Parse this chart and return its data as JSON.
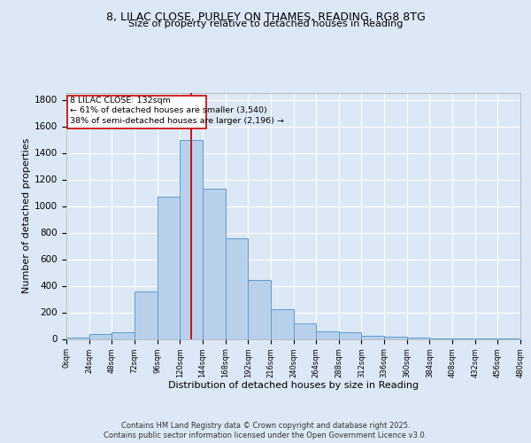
{
  "title_line1": "8, LILAC CLOSE, PURLEY ON THAMES, READING, RG8 8TG",
  "title_line2": "Size of property relative to detached houses in Reading",
  "xlabel": "Distribution of detached houses by size in Reading",
  "ylabel": "Number of detached properties",
  "annotation_title": "8 LILAC CLOSE: 132sqm",
  "annotation_line2": "← 61% of detached houses are smaller (3,540)",
  "annotation_line3": "38% of semi-detached houses are larger (2,196) →",
  "property_size": 132,
  "bar_edges": [
    0,
    24,
    48,
    72,
    96,
    120,
    144,
    168,
    192,
    216,
    240,
    264,
    288,
    312,
    336,
    360,
    384,
    408,
    432,
    456,
    480
  ],
  "bar_heights": [
    10,
    35,
    50,
    355,
    1070,
    1500,
    1130,
    760,
    445,
    225,
    115,
    55,
    50,
    25,
    15,
    10,
    5,
    3,
    2,
    1
  ],
  "bar_color": "#b8d0ea",
  "bar_edge_color": "#5a9fd4",
  "vline_color": "#cc0000",
  "vline_x": 132,
  "annotation_box_color": "#cc0000",
  "background_color": "#dce8f5",
  "plot_bg": "#dce8f5",
  "grid_color": "#ffffff",
  "ytick_labels": [
    "0",
    "200",
    "400",
    "600",
    "800",
    "1000",
    "1200",
    "1400",
    "1600",
    "1800"
  ],
  "ytick_values": [
    0,
    200,
    400,
    600,
    800,
    1000,
    1200,
    1400,
    1600,
    1800
  ],
  "ylim": [
    0,
    1850
  ],
  "footer_line1": "Contains HM Land Registry data © Crown copyright and database right 2025.",
  "footer_line2": "Contains public sector information licensed under the Open Government Licence v3.0."
}
